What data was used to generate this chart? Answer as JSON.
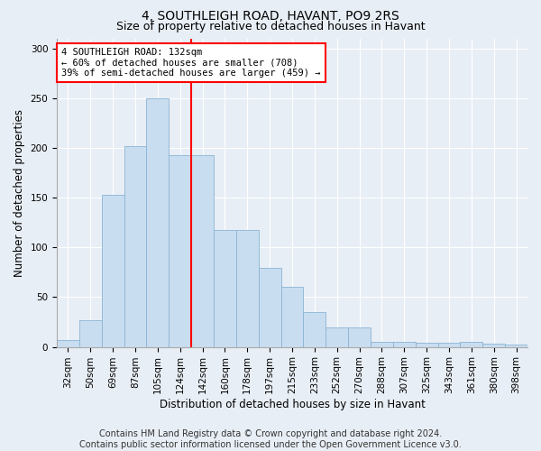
{
  "title": "4, SOUTHLEIGH ROAD, HAVANT, PO9 2RS",
  "subtitle": "Size of property relative to detached houses in Havant",
  "xlabel": "Distribution of detached houses by size in Havant",
  "ylabel": "Number of detached properties",
  "categories": [
    "32sqm",
    "50sqm",
    "69sqm",
    "87sqm",
    "105sqm",
    "124sqm",
    "142sqm",
    "160sqm",
    "178sqm",
    "197sqm",
    "215sqm",
    "233sqm",
    "252sqm",
    "270sqm",
    "288sqm",
    "307sqm",
    "325sqm",
    "343sqm",
    "361sqm",
    "380sqm",
    "398sqm"
  ],
  "values": [
    7,
    27,
    153,
    202,
    250,
    193,
    193,
    117,
    117,
    79,
    60,
    35,
    20,
    20,
    5,
    5,
    4,
    4,
    5,
    3,
    2
  ],
  "bar_color": "#c9ddf0",
  "bar_edge_color": "#8ab4d4",
  "vline_color": "red",
  "annotation_text": "4 SOUTHLEIGH ROAD: 132sqm\n← 60% of detached houses are smaller (708)\n39% of semi-detached houses are larger (459) →",
  "annotation_box_color": "white",
  "annotation_box_edge_color": "red",
  "ylim": [
    0,
    310
  ],
  "yticks": [
    0,
    50,
    100,
    150,
    200,
    250,
    300
  ],
  "background_color": "#e8eef5",
  "plot_background_color": "#e8eef5",
  "footer_line1": "Contains HM Land Registry data © Crown copyright and database right 2024.",
  "footer_line2": "Contains public sector information licensed under the Open Government Licence v3.0.",
  "title_fontsize": 10,
  "subtitle_fontsize": 9,
  "xlabel_fontsize": 8.5,
  "ylabel_fontsize": 8.5,
  "tick_fontsize": 7.5,
  "footer_fontsize": 7
}
